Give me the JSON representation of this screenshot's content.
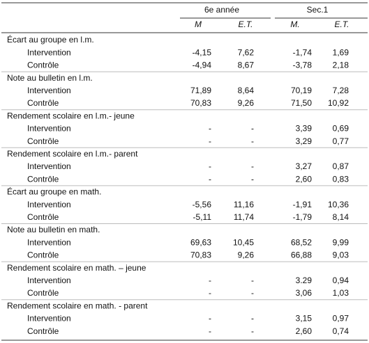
{
  "table": {
    "header": {
      "groups": [
        "6e année",
        "Sec.1"
      ],
      "columns": [
        "M",
        "E.T.",
        "M.",
        "E.T."
      ]
    },
    "sections": [
      {
        "title": "Écart au groupe en l.m.",
        "rows": [
          {
            "label": "Intervention",
            "cells": [
              "-4,15",
              "7,62",
              "-1,74",
              "1,69"
            ]
          },
          {
            "label": "Contrôle",
            "cells": [
              "-4,94",
              "8,67",
              "-3,78",
              "2,18"
            ]
          }
        ]
      },
      {
        "title": "Note au bulletin en l.m.",
        "rows": [
          {
            "label": "Intervention",
            "cells": [
              "71,89",
              "8,64",
              "70,19",
              "7,28"
            ]
          },
          {
            "label": "Contrôle",
            "cells": [
              "70,83",
              "9,26",
              "71,50",
              "10,92"
            ]
          }
        ]
      },
      {
        "title": "Rendement scolaire en l.m.- jeune",
        "rows": [
          {
            "label": "Intervention",
            "cells": [
              "-",
              "-",
              "3,39",
              "0,69"
            ]
          },
          {
            "label": "Contrôle",
            "cells": [
              "-",
              "-",
              "3,29",
              "0,77"
            ]
          }
        ]
      },
      {
        "title": "Rendement scolaire en l.m.- parent",
        "rows": [
          {
            "label": "Intervention",
            "cells": [
              "-",
              "-",
              "3,27",
              "0,87"
            ]
          },
          {
            "label": "Contrôle",
            "cells": [
              "-",
              "-",
              "2,60",
              "0,83"
            ]
          }
        ]
      },
      {
        "title": "Écart au groupe en math.",
        "rows": [
          {
            "label": "Intervention",
            "cells": [
              "-5,56",
              "11,16",
              "-1,91",
              "10,36"
            ]
          },
          {
            "label": "Contrôle",
            "cells": [
              "-5,11",
              "11,74",
              "-1,79",
              "8,14"
            ]
          }
        ]
      },
      {
        "title": "Note au bulletin en math.",
        "rows": [
          {
            "label": "Intervention",
            "cells": [
              "69,63",
              "10,45",
              "68,52",
              "9,99"
            ]
          },
          {
            "label": "Contrôle",
            "cells": [
              "70,83",
              "9,26",
              "66,88",
              "9,03"
            ]
          }
        ]
      },
      {
        "title": "Rendement scolaire en math. – jeune",
        "rows": [
          {
            "label": "Intervention",
            "cells": [
              "-",
              "-",
              "3.29",
              "0,94"
            ]
          },
          {
            "label": "Contrôle",
            "cells": [
              "-",
              "-",
              "3,06",
              "1,03"
            ]
          }
        ]
      },
      {
        "title": "Rendement scolaire en math. - parent",
        "rows": [
          {
            "label": "Intervention",
            "cells": [
              "-",
              "-",
              "3,15",
              "0,97"
            ]
          },
          {
            "label": "Contrôle",
            "cells": [
              "-",
              "-",
              "2,60",
              "0,74"
            ]
          }
        ]
      }
    ]
  }
}
